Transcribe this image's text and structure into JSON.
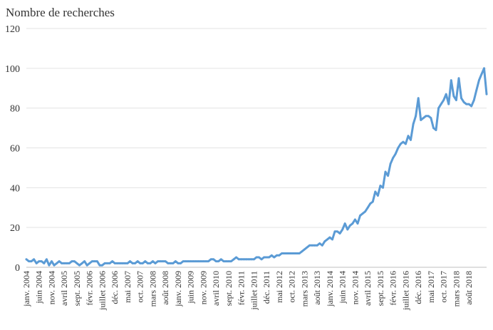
{
  "chart_data": {
    "type": "line",
    "title": "",
    "ylabel": "Nombre de recherches",
    "xlabel": "",
    "ylim": [
      0,
      120
    ],
    "y_ticks": [
      "0",
      "20",
      "40",
      "60",
      "80",
      "100",
      "120"
    ],
    "grid": true,
    "x_start": "2004-01",
    "x_tick_labels": [
      "janv. 2004",
      "juin 2004",
      "nov. 2004",
      "avril 2005",
      "sept. 2005",
      "févr. 2006",
      "juillet 2006",
      "déc. 2006",
      "mai 2007",
      "oct. 2007",
      "mars 2008",
      "août 2008",
      "janv. 2009",
      "juin 2009",
      "nov. 2009",
      "avril 2010",
      "sept. 2010",
      "févr. 2011",
      "juillet 2011",
      "déc. 2011",
      "mai 2012",
      "oct. 2012",
      "mars 2013",
      "août 2013",
      "janv. 2014",
      "juin 2014",
      "nov. 2014",
      "avril 2015",
      "sept. 2015",
      "févr. 2016",
      "juillet 2016",
      "déc. 2016",
      "mai 2017",
      "oct. 2017",
      "mars 2018",
      "août 2018"
    ],
    "series": [
      {
        "name": "",
        "color": "#5b9bd5",
        "values": [
          4,
          3,
          3,
          4,
          2,
          3,
          3,
          2,
          4,
          1,
          3,
          1,
          2,
          3,
          2,
          2,
          2,
          2,
          3,
          3,
          2,
          1,
          2,
          3,
          1,
          2,
          3,
          3,
          3,
          1,
          1,
          2,
          2,
          2,
          3,
          2,
          2,
          2,
          2,
          2,
          2,
          3,
          2,
          2,
          3,
          2,
          2,
          3,
          2,
          2,
          3,
          2,
          3,
          3,
          3,
          3,
          2,
          2,
          2,
          3,
          2,
          2,
          3,
          3,
          3,
          3,
          3,
          3,
          3,
          3,
          3,
          3,
          3,
          4,
          4,
          3,
          3,
          4,
          3,
          3,
          3,
          3,
          4,
          5,
          4,
          4,
          4,
          4,
          4,
          4,
          4,
          5,
          5,
          4,
          5,
          5,
          5,
          6,
          5,
          6,
          6,
          7,
          7,
          7,
          7,
          7,
          7,
          7,
          7,
          8,
          9,
          10,
          11,
          11,
          11,
          11,
          12,
          11,
          13,
          14,
          15,
          14,
          18,
          18,
          17,
          19,
          22,
          19,
          21,
          22,
          24,
          22,
          26,
          27,
          28,
          30,
          32,
          33,
          38,
          36,
          41,
          40,
          48,
          46,
          52,
          55,
          57,
          60,
          62,
          63,
          62,
          66,
          64,
          72,
          76,
          85,
          74,
          75,
          76,
          76,
          75,
          70,
          69,
          80,
          82,
          84,
          87,
          82,
          94,
          86,
          84,
          95,
          85,
          83,
          82,
          82,
          81,
          84,
          89,
          94,
          97,
          100,
          87
        ]
      }
    ]
  }
}
